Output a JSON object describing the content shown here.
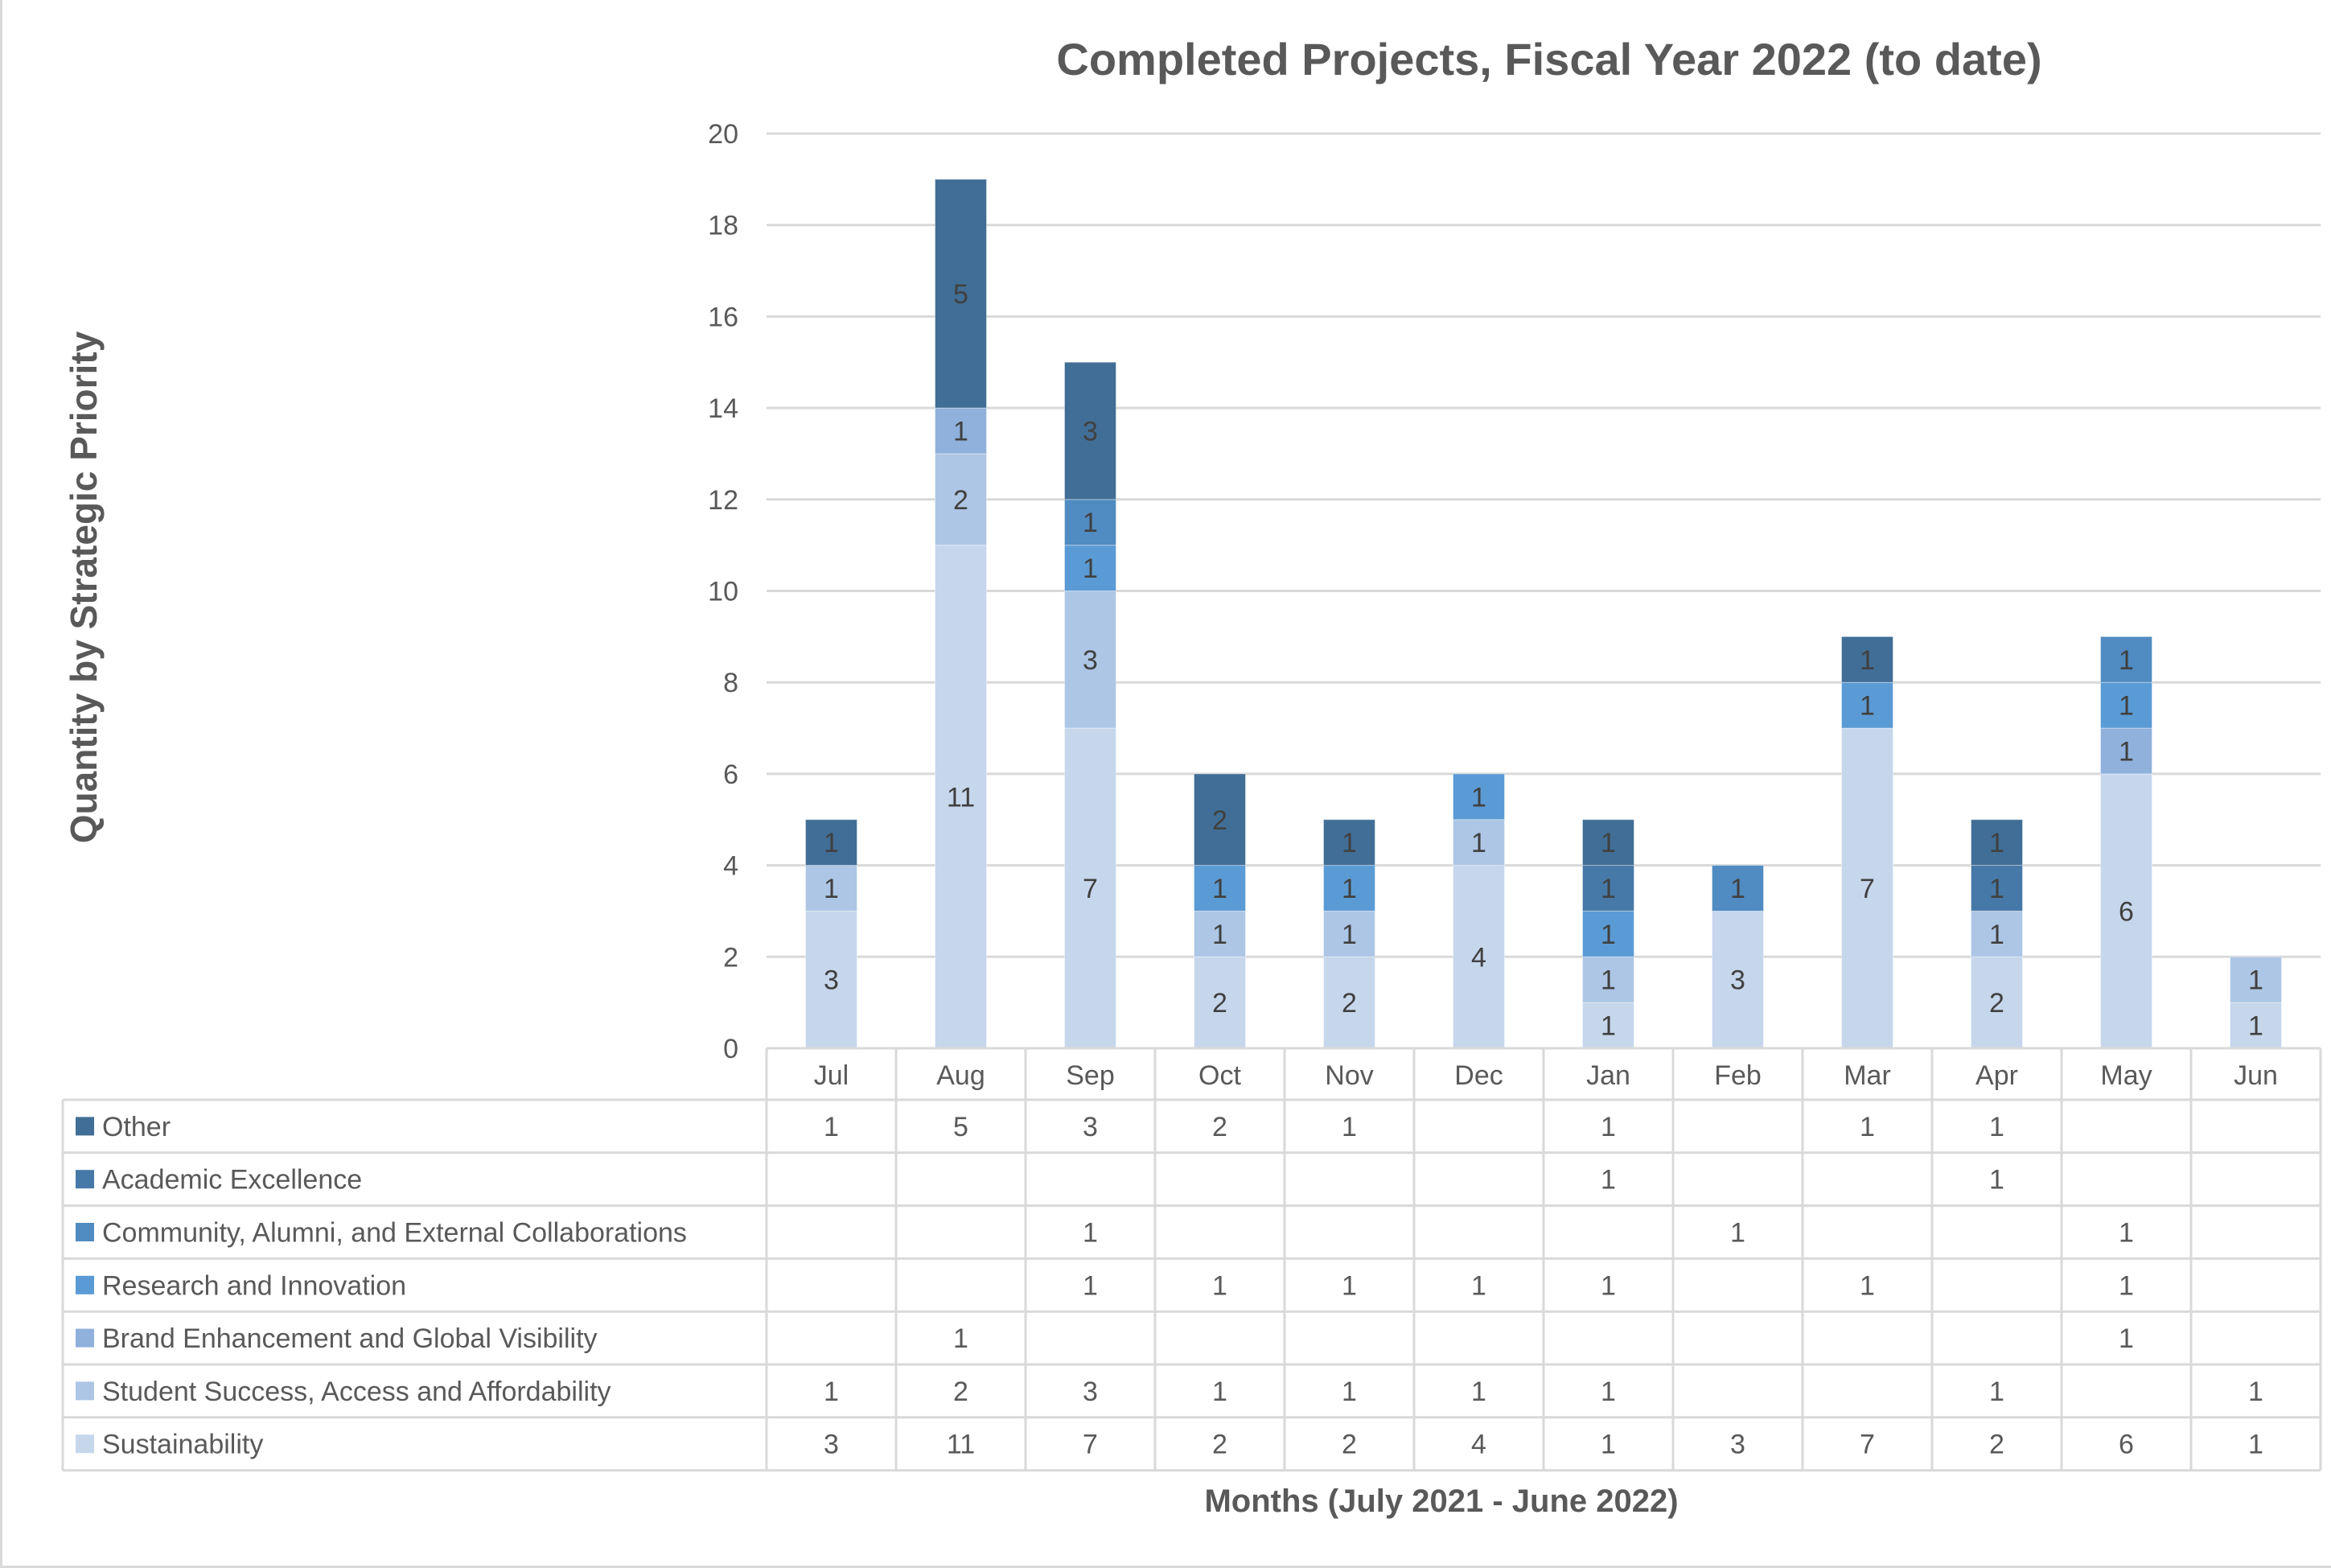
{
  "chart_data": {
    "type": "bar",
    "stacked": true,
    "title": "Completed Projects, Fiscal Year 2022 (to date)",
    "xlabel": "Months (July 2021 - June 2022)",
    "ylabel": "Quantity by Strategic Priority",
    "ylim": [
      0,
      20
    ],
    "yticks": [
      0,
      2,
      4,
      6,
      8,
      10,
      12,
      14,
      16,
      18,
      20
    ],
    "grid": true,
    "legend_placement": "data-table-below",
    "categories": [
      "Jul",
      "Aug",
      "Sep",
      "Oct",
      "Nov",
      "Dec",
      "Jan",
      "Feb",
      "Mar",
      "Apr",
      "May",
      "Jun"
    ],
    "series": [
      {
        "name": "Sustainability",
        "color": "#C6D7EC",
        "values": [
          3,
          11,
          7,
          2,
          2,
          4,
          1,
          3,
          7,
          2,
          6,
          1
        ]
      },
      {
        "name": "Student Success, Access and Affordability",
        "color": "#ADC6E5",
        "values": [
          1,
          2,
          3,
          1,
          1,
          1,
          1,
          null,
          null,
          1,
          null,
          1
        ]
      },
      {
        "name": "Brand Enhancement and Global Visibility",
        "color": "#8FB1DC",
        "values": [
          null,
          1,
          null,
          null,
          null,
          null,
          null,
          null,
          null,
          null,
          1,
          null
        ]
      },
      {
        "name": "Research and Innovation",
        "color": "#5B9BD5",
        "values": [
          null,
          null,
          1,
          1,
          1,
          1,
          1,
          null,
          1,
          null,
          1,
          null
        ]
      },
      {
        "name": "Community, Alumni, and External Collaborations",
        "color": "#508BC1",
        "values": [
          null,
          null,
          1,
          null,
          null,
          null,
          null,
          1,
          null,
          null,
          1,
          null
        ]
      },
      {
        "name": "Academic Excellence",
        "color": "#4679A8",
        "values": [
          null,
          null,
          null,
          null,
          null,
          null,
          1,
          null,
          null,
          1,
          null,
          null
        ]
      },
      {
        "name": "Other",
        "color": "#416E96",
        "values": [
          1,
          5,
          3,
          2,
          1,
          null,
          1,
          null,
          1,
          1,
          null,
          null
        ]
      }
    ]
  }
}
